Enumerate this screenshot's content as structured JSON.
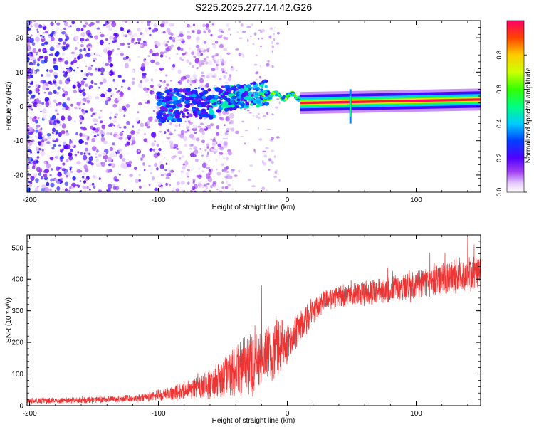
{
  "title": "S225.2025.277.14.42.G26",
  "chart_data": [
    {
      "type": "heatmap",
      "panel": "spectrogram",
      "xlabel": "Height of straight line (km)",
      "ylabel": "Frequency (Hz)",
      "xlim": [
        -202,
        150
      ],
      "ylim": [
        -25,
        25
      ],
      "xticks": [
        "-200",
        "-100",
        "0",
        "100"
      ],
      "xtick_values": [
        -200,
        -100,
        0,
        100
      ],
      "yticks": [
        "-20",
        "-10",
        "0",
        "10",
        "20"
      ],
      "ytick_values": [
        -20,
        -10,
        0,
        10,
        20
      ],
      "colorbar": {
        "label": "Normalized spectral amplitude",
        "range": [
          0,
          1
        ],
        "ticks": [
          "0.0",
          "0.2",
          "0.4",
          "0.6",
          "0.8"
        ],
        "tick_values": [
          0.0,
          0.2,
          0.4,
          0.6,
          0.8
        ]
      },
      "features": {
        "noise_region_km": [
          -202,
          -90
        ],
        "scattered_blobs_km": [
          -100,
          -15
        ],
        "signal_line_freq_hz": 1,
        "signal_line_start_km": 10,
        "signal_line_end_km": 150,
        "signal_line_peak_amplitude": 0.98,
        "vertical_artifact_km": 49,
        "drift_start_freq_hz": 3,
        "drift_end_freq_hz": 2
      }
    },
    {
      "type": "line",
      "panel": "snr",
      "xlabel": "Height of straight line (km)",
      "ylabel": "SNR (10 * v/v)",
      "xlim": [
        -202,
        150
      ],
      "ylim": [
        0,
        540
      ],
      "xticks": [
        "-200",
        "-100",
        "0",
        "100"
      ],
      "xtick_values": [
        -200,
        -100,
        0,
        100
      ],
      "yticks": [
        "0",
        "100",
        "200",
        "300",
        "400",
        "500"
      ],
      "ytick_values": [
        0,
        100,
        200,
        300,
        400,
        500
      ],
      "series_color": "#ee3333",
      "trend": [
        {
          "x": -202,
          "y": 15
        },
        {
          "x": -150,
          "y": 18
        },
        {
          "x": -110,
          "y": 25
        },
        {
          "x": -80,
          "y": 45
        },
        {
          "x": -60,
          "y": 70
        },
        {
          "x": -40,
          "y": 110
        },
        {
          "x": -20,
          "y": 150
        },
        {
          "x": 0,
          "y": 200
        },
        {
          "x": 10,
          "y": 250
        },
        {
          "x": 20,
          "y": 300
        },
        {
          "x": 30,
          "y": 340
        },
        {
          "x": 50,
          "y": 350
        },
        {
          "x": 70,
          "y": 360
        },
        {
          "x": 100,
          "y": 380
        },
        {
          "x": 120,
          "y": 400
        },
        {
          "x": 150,
          "y": 420
        }
      ],
      "noise_amplitude": [
        {
          "x": -202,
          "y": 10
        },
        {
          "x": -120,
          "y": 12
        },
        {
          "x": -80,
          "y": 30
        },
        {
          "x": -50,
          "y": 70
        },
        {
          "x": -30,
          "y": 110
        },
        {
          "x": -10,
          "y": 110
        },
        {
          "x": 10,
          "y": 60
        },
        {
          "x": 30,
          "y": 40
        },
        {
          "x": 80,
          "y": 50
        },
        {
          "x": 150,
          "y": 70
        }
      ],
      "spikes": [
        {
          "x": -20,
          "y": 380
        },
        {
          "x": 140,
          "y": 535
        },
        {
          "x": 145,
          "y": 510
        }
      ]
    }
  ]
}
